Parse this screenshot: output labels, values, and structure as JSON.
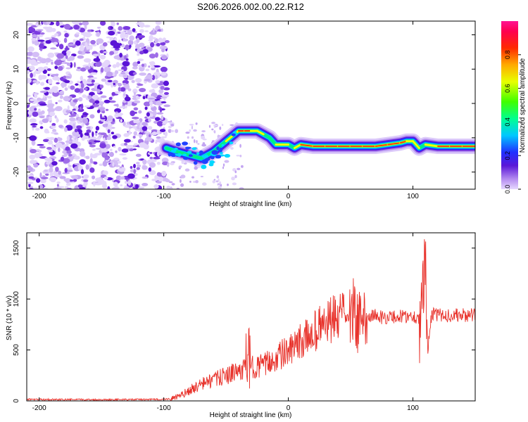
{
  "title": "S206.2026.002.00.22.R12",
  "colors": {
    "snr_line": "#e8322b",
    "frame": "#000000",
    "background": "#ffffff"
  },
  "chart_data": [
    {
      "type": "heatmap",
      "title": "S206.2026.002.00.22.R12",
      "xlabel": "Height of straight line (km)",
      "ylabel": "Frequency (Hz)",
      "xlim": [
        -210,
        150
      ],
      "ylim": [
        -25,
        24
      ],
      "xticks": [
        -200,
        -100,
        0,
        100
      ],
      "yticks": [
        -20,
        -10,
        0,
        10,
        20
      ],
      "tick_labels_x": [
        "-200",
        "-100",
        "0",
        "100"
      ],
      "tick_labels_y": [
        "-20",
        "-10",
        "0",
        "10",
        "20"
      ],
      "noise_region": {
        "x_range": [
          -210,
          -97
        ],
        "f_range": [
          -25,
          24
        ]
      },
      "ridge": {
        "x": [
          -98,
          -90,
          -80,
          -70,
          -60,
          -50,
          -40,
          -35,
          -30,
          -25,
          -20,
          -15,
          -10,
          -5,
          0,
          5,
          10,
          20,
          30,
          40,
          50,
          60,
          70,
          80,
          90,
          95,
          100,
          105,
          110,
          120,
          130,
          140,
          150
        ],
        "f": [
          -13,
          -14,
          -15,
          -16,
          -14,
          -11,
          -8,
          -8,
          -8,
          -8,
          -9,
          -10,
          -12,
          -12,
          -12,
          -13,
          -12,
          -12.5,
          -12.5,
          -12.5,
          -12.5,
          -12.5,
          -12.5,
          -12,
          -11.5,
          -11,
          -11,
          -13,
          -12,
          -12.5,
          -12.5,
          -12.5,
          -12.5
        ],
        "amplitude": [
          0.3,
          0.25,
          0.3,
          0.2,
          0.35,
          0.55,
          0.75,
          0.85,
          0.8,
          0.7,
          0.6,
          0.5,
          0.65,
          0.8,
          0.5,
          0.4,
          0.9,
          0.9,
          0.9,
          0.8,
          0.9,
          0.85,
          0.8,
          0.8,
          0.85,
          0.8,
          0.7,
          0.5,
          0.6,
          0.8,
          0.9,
          0.9,
          0.9
        ]
      },
      "colorbar": {
        "label": "Normalized spectral amplitude",
        "range": [
          0,
          1
        ],
        "ticks": [
          0.0,
          0.2,
          0.4,
          0.6,
          0.8
        ],
        "tick_labels": [
          "0.0",
          "0.2",
          "0.4",
          "0.6",
          "0.8"
        ],
        "colormap": "hsv (violet → blue → cyan → green → yellow → orange → red → magenta)"
      }
    },
    {
      "type": "line",
      "xlabel": "Height of straight line (km)",
      "ylabel": "SNR (10 * v/v)",
      "xlim": [
        -210,
        150
      ],
      "ylim": [
        0,
        1650
      ],
      "xticks": [
        -200,
        -100,
        0,
        100
      ],
      "yticks": [
        0,
        500,
        1000,
        1500
      ],
      "tick_labels_x": [
        "-200",
        "-100",
        "0",
        "100"
      ],
      "tick_labels_y": [
        "0",
        "500",
        "1000",
        "1500"
      ],
      "series": [
        {
          "name": "SNR",
          "x": [
            -210,
            -150,
            -100,
            -92,
            -85,
            -80,
            -75,
            -70,
            -65,
            -60,
            -55,
            -50,
            -45,
            -40,
            -35,
            -32,
            -30,
            -25,
            -20,
            -15,
            -10,
            -5,
            0,
            5,
            10,
            15,
            20,
            25,
            30,
            35,
            40,
            45,
            50,
            53,
            55,
            58,
            60,
            65,
            70,
            75,
            80,
            90,
            100,
            105,
            108,
            110,
            112,
            115,
            120,
            130,
            140,
            150
          ],
          "values": [
            15,
            12,
            15,
            25,
            60,
            100,
            130,
            160,
            190,
            200,
            230,
            250,
            270,
            290,
            320,
            450,
            330,
            340,
            350,
            380,
            420,
            460,
            480,
            520,
            580,
            620,
            680,
            720,
            760,
            790,
            810,
            820,
            820,
            900,
            820,
            800,
            810,
            830,
            840,
            820,
            820,
            830,
            830,
            820,
            860,
            1300,
            520,
            850,
            840,
            840,
            840,
            840
          ]
        }
      ]
    }
  ]
}
